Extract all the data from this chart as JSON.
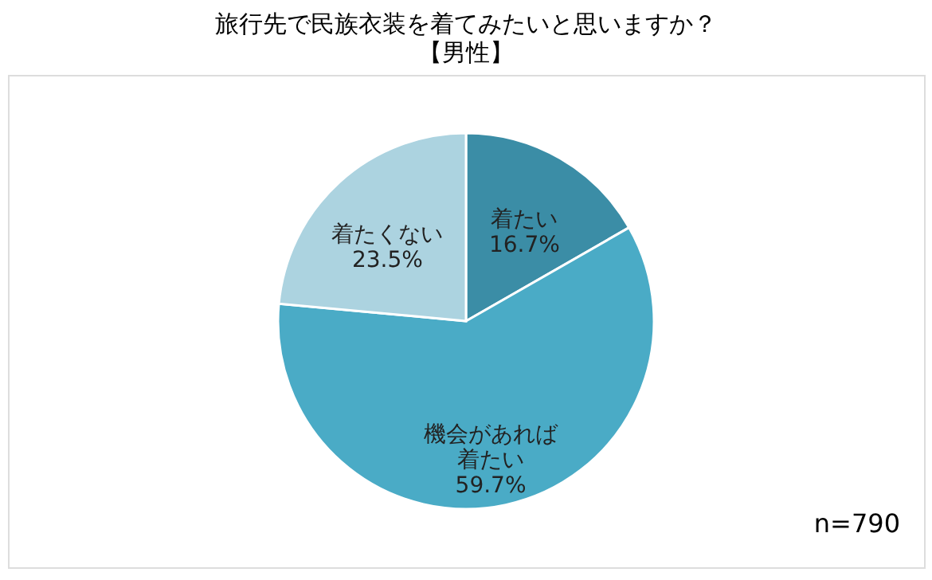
{
  "chart_data": {
    "type": "pie",
    "title": "旅行先で民族衣装を着てみたいと思いますか？",
    "subtitle": "【男性】",
    "categories": [
      "着たい",
      "機会があれば着たい",
      "着たくない"
    ],
    "values": [
      16.7,
      59.7,
      23.5
    ],
    "value_labels": [
      "16.7%",
      "59.7%",
      "23.5%"
    ],
    "colors": [
      "#3b8da6",
      "#4aabc6",
      "#acd3e0"
    ],
    "legend": false,
    "annotations": [
      "n=790"
    ]
  }
}
